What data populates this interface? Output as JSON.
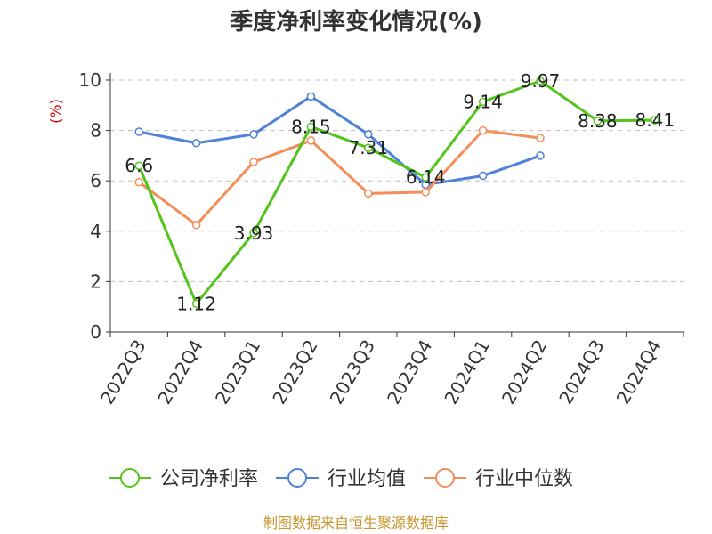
{
  "chart_data": {
    "type": "line",
    "title": "季度净利率变化情况(%)",
    "ylabel": "(%)",
    "xlabel": "",
    "categories": [
      "2022Q3",
      "2022Q4",
      "2023Q1",
      "2023Q2",
      "2023Q3",
      "2023Q4",
      "2024Q1",
      "2024Q2",
      "2024Q3",
      "2024Q4"
    ],
    "ylim": [
      0,
      10
    ],
    "yticks": [
      0,
      2,
      4,
      6,
      8,
      10
    ],
    "grid": true,
    "legend_position": "bottom",
    "series": [
      {
        "name": "公司净利率",
        "color": "#52c41a",
        "values": [
          6.6,
          1.12,
          3.93,
          8.15,
          7.31,
          6.14,
          9.14,
          9.97,
          8.38,
          8.41
        ],
        "labels": [
          "6.6",
          "1.12",
          "3.93",
          "8.15",
          "7.31",
          "6.14",
          "9.14",
          "9.97",
          "8.38",
          "8.41"
        ]
      },
      {
        "name": "行业均值",
        "color": "#4f81d9",
        "values": [
          7.95,
          7.5,
          7.85,
          9.35,
          7.85,
          5.85,
          6.2,
          7.0,
          null,
          null
        ]
      },
      {
        "name": "行业中位数",
        "color": "#f28e5a",
        "values": [
          5.95,
          4.25,
          6.75,
          7.6,
          5.5,
          5.55,
          8.0,
          7.7,
          null,
          null
        ]
      }
    ]
  },
  "source_text": "制图数据来自恒生聚源数据库"
}
